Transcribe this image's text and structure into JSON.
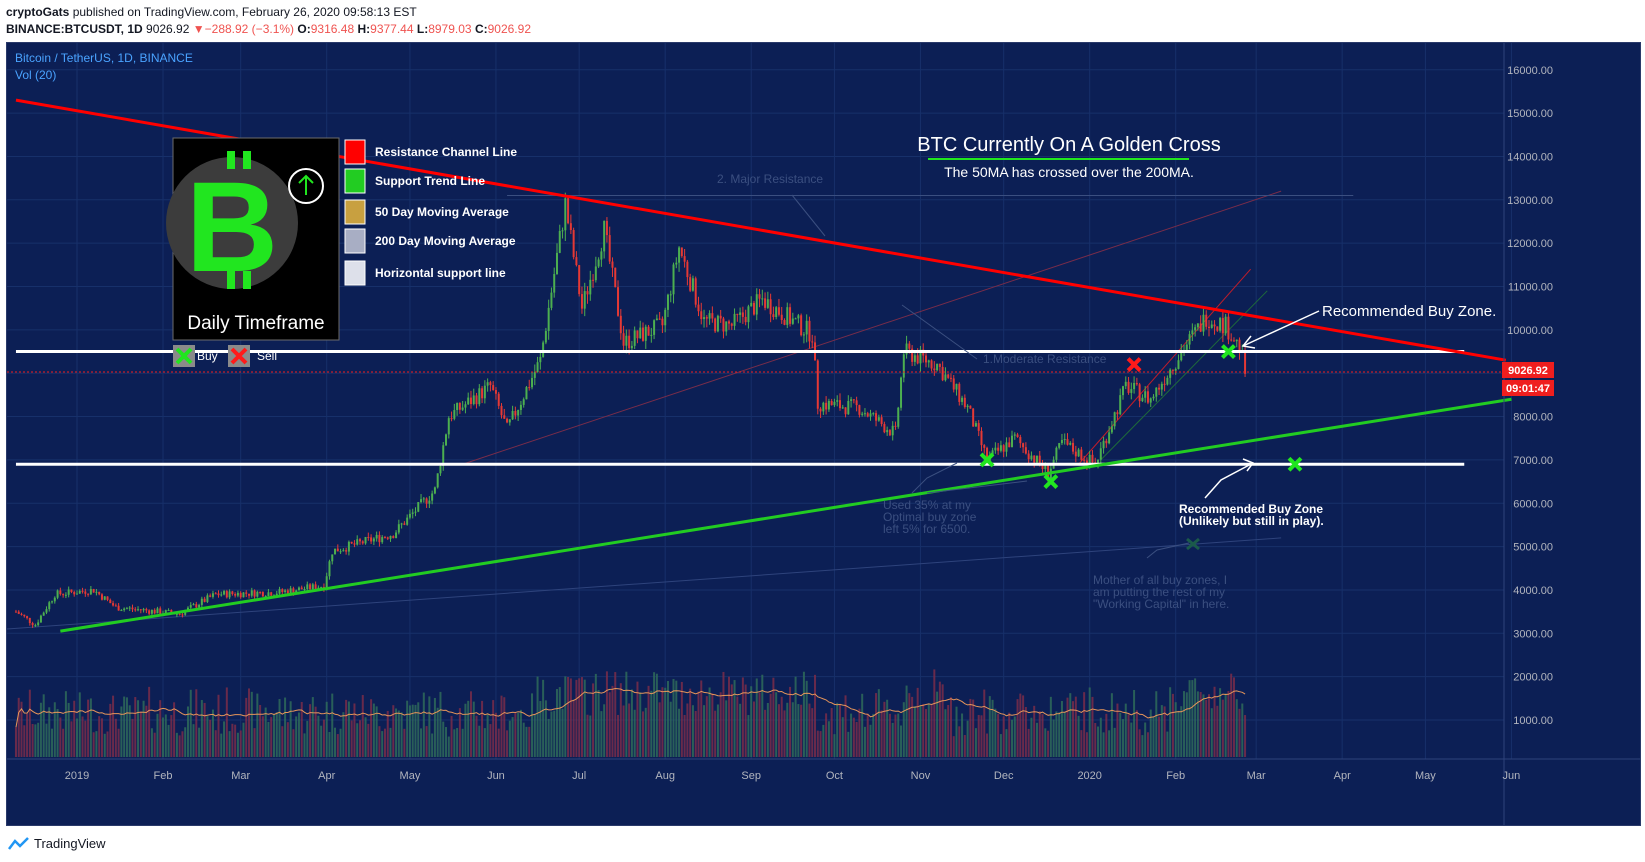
{
  "header": {
    "author": "cryptoGats",
    "published_text": "published on TradingView.com, February 26, 2020 09:58:13 EST",
    "symbol": "BINANCE:BTCUSDT, 1D",
    "last_price": "9026.92",
    "change": "−288.92 (−3.1%)",
    "change_arrow": "▼",
    "o_label": "O:",
    "o_value": "9316.48",
    "h_label": "H:",
    "h_value": "9377.44",
    "l_label": "L:",
    "l_value": "8979.03",
    "c_label": "C:",
    "c_value": "9026.92"
  },
  "chart_header": {
    "title": "Bitcoin / TetherUS, 1D, BINANCE",
    "volume_label": "Vol (20)"
  },
  "legend": {
    "items": [
      {
        "label": "Resistance Channel Line",
        "color": "#ff0000"
      },
      {
        "label": "Support Trend Line",
        "color": "#22cc22"
      },
      {
        "label": "50 Day Moving Average",
        "color": "#c8a040"
      },
      {
        "label": "200 Day Moving Average",
        "color": "#a8aec4"
      },
      {
        "label": "Horizontal support line",
        "color": "#dde0ea"
      }
    ],
    "logo_caption": "Daily Timeframe",
    "buy_label": "Buy",
    "sell_label": "Sell"
  },
  "annotations": {
    "headline": "BTC Currently On A Golden Cross",
    "subline": "The 50MA has crossed over the 200MA.",
    "major_resistance": "2. Major Resistance",
    "moderate_resistance": "1.Moderate Resistance",
    "buy_zone": "Recommended Buy Zone.",
    "buy_zone_2_line1": "Recommended Buy Zone",
    "buy_zone_2_line2": "(Unlikely but still in play).",
    "used_line1": "Used 35% at my",
    "used_line2": "Optimal buy zone",
    "used_line3": "left 5% for 6500.",
    "mother_line1": "Mother of all buy zones, I",
    "mother_line2": "am putting the rest of my",
    "mother_line3": "\"Working Capital\" in here."
  },
  "price_tag": {
    "price": "9026.92",
    "countdown": "09:01:47"
  },
  "chart_data": {
    "type": "candlestick",
    "title": "Bitcoin / TetherUS, 1D, BINANCE",
    "y_ticks": [
      1000,
      2000,
      3000,
      4000,
      5000,
      6000,
      7000,
      8000,
      9000,
      10000,
      11000,
      12000,
      13000,
      14000,
      15000,
      16000
    ],
    "y_tick_labels": [
      "1000.00",
      "2000.00",
      "3000.00",
      "4000.00",
      "5000.00",
      "6000.00",
      "7000.00",
      "8000.00",
      "9000.00",
      "10000.00",
      "11000.00",
      "12000.00",
      "13000.00",
      "14000.00",
      "15000.00",
      "16000.00"
    ],
    "ylim": [
      0,
      16500
    ],
    "x_tick_labels": [
      "2019",
      "Feb",
      "Mar",
      "Apr",
      "May",
      "Jun",
      "Jul",
      "Aug",
      "Sep",
      "Oct",
      "Nov",
      "Dec",
      "2020",
      "Feb",
      "Mar",
      "Apr",
      "May",
      "Jun"
    ],
    "x_tick_dates": [
      "2019-01-01",
      "2019-02-01",
      "2019-03-01",
      "2019-04-01",
      "2019-05-01",
      "2019-06-01",
      "2019-07-01",
      "2019-08-01",
      "2019-09-01",
      "2019-10-01",
      "2019-11-01",
      "2019-12-01",
      "2020-01-01",
      "2020-02-01",
      "2020-03-01",
      "2020-04-01",
      "2020-05-01",
      "2020-06-01"
    ],
    "price_path": [
      [
        "2018-12-10",
        3500
      ],
      [
        "2018-12-17",
        3200
      ],
      [
        "2018-12-24",
        3900
      ],
      [
        "2019-01-07",
        4000
      ],
      [
        "2019-01-15",
        3600
      ],
      [
        "2019-02-07",
        3450
      ],
      [
        "2019-02-20",
        3900
      ],
      [
        "2019-03-15",
        3950
      ],
      [
        "2019-03-31",
        4100
      ],
      [
        "2019-04-03",
        4900
      ],
      [
        "2019-04-25",
        5300
      ],
      [
        "2019-05-10",
        6300
      ],
      [
        "2019-05-15",
        8000
      ],
      [
        "2019-05-30",
        8700
      ],
      [
        "2019-06-05",
        7700
      ],
      [
        "2019-06-17",
        9300
      ],
      [
        "2019-06-26",
        12900
      ],
      [
        "2019-07-02",
        10500
      ],
      [
        "2019-07-10",
        12300
      ],
      [
        "2019-07-17",
        9700
      ],
      [
        "2019-07-31",
        10100
      ],
      [
        "2019-08-06",
        11900
      ],
      [
        "2019-08-15",
        10200
      ],
      [
        "2019-08-25",
        10100
      ],
      [
        "2019-09-05",
        10700
      ],
      [
        "2019-09-23",
        9900
      ],
      [
        "2019-09-25",
        8300
      ],
      [
        "2019-10-10",
        8200
      ],
      [
        "2019-10-23",
        7600
      ],
      [
        "2019-10-26",
        9500
      ],
      [
        "2019-11-07",
        9200
      ],
      [
        "2019-11-18",
        8200
      ],
      [
        "2019-11-25",
        7000
      ],
      [
        "2019-12-05",
        7500
      ],
      [
        "2019-12-17",
        6700
      ],
      [
        "2019-12-22",
        7400
      ],
      [
        "2020-01-03",
        6900
      ],
      [
        "2020-01-14",
        8700
      ],
      [
        "2020-01-23",
        8400
      ],
      [
        "2020-02-02",
        9400
      ],
      [
        "2020-02-12",
        10300
      ],
      [
        "2020-02-19",
        10100
      ],
      [
        "2020-02-24",
        9600
      ],
      [
        "2020-02-26",
        9027
      ]
    ],
    "lines": [
      {
        "name": "Resistance Channel Line",
        "color": "#ff0000",
        "from": [
          "2018-12-10",
          15300
        ],
        "to": [
          "2020-05-30",
          9300
        ]
      },
      {
        "name": "Support Trend Line",
        "color": "#22cc22",
        "from": [
          "2018-12-26",
          3050
        ],
        "to": [
          "2020-06-01",
          8400
        ]
      },
      {
        "name": "Horizontal support line",
        "color": "#ffffff",
        "from": [
          "2018-12-10",
          9500
        ],
        "to": [
          "2020-05-15",
          9500
        ]
      },
      {
        "name": "Horizontal support line",
        "color": "#ffffff",
        "from": [
          "2018-12-10",
          6900
        ],
        "to": [
          "2020-05-15",
          6900
        ]
      }
    ],
    "markers": [
      {
        "kind": "buy",
        "date": "2019-11-25",
        "value": 7000
      },
      {
        "kind": "buy",
        "date": "2019-12-18",
        "value": 6500
      },
      {
        "kind": "buy",
        "date": "2020-02-20",
        "value": 9500
      },
      {
        "kind": "buy",
        "date": "2020-03-15",
        "value": 6900
      },
      {
        "kind": "sell",
        "date": "2020-01-17",
        "value": 9200
      }
    ],
    "volume": {
      "ylim": [
        0,
        4000
      ]
    }
  },
  "footer": {
    "brand": "TradingView"
  }
}
